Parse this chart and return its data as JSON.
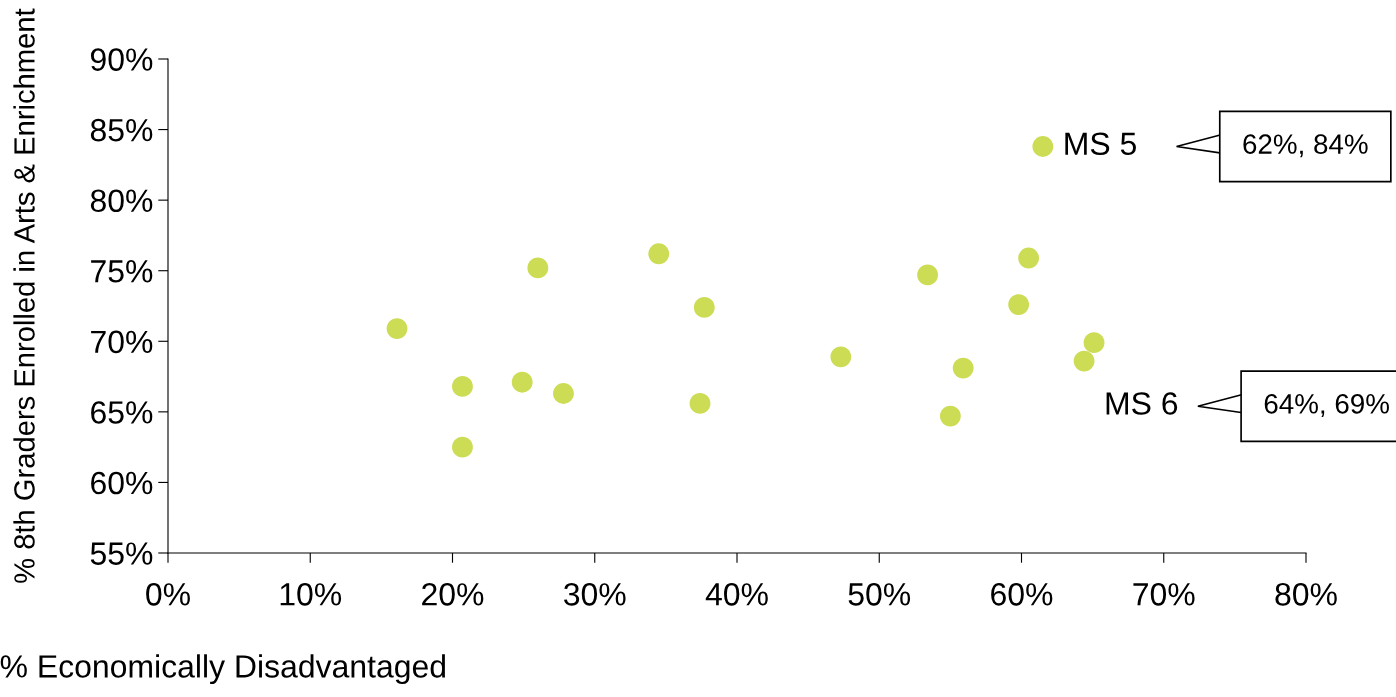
{
  "chart_data": {
    "type": "scatter",
    "xlabel": "% Economically Disadvantaged",
    "ylabel": "% 8th Graders Enrolled in Arts & Enrichment",
    "series": [
      {
        "color": "#cddc55",
        "x": [
          16.1,
          20.7,
          20.7,
          24.9,
          26.0,
          27.8,
          34.5,
          37.7,
          37.4,
          47.3,
          53.4,
          55.0,
          55.9,
          59.8,
          60.5,
          61.5,
          64.4,
          65.1
        ],
        "values": [
          70.9,
          66.8,
          62.5,
          67.1,
          75.2,
          66.3,
          76.2,
          72.4,
          65.6,
          68.9,
          74.7,
          64.7,
          68.1,
          72.6,
          75.9,
          83.8,
          68.6,
          69.9
        ]
      }
    ],
    "marker": "circle",
    "grid": false,
    "legend": false,
    "xlim": [
      0,
      80
    ],
    "ylim": [
      55,
      90
    ],
    "xticks": [
      {
        "value": 0,
        "label": "0%"
      },
      {
        "value": 10,
        "label": "10%"
      },
      {
        "value": 20,
        "label": "20%"
      },
      {
        "value": 30,
        "label": "30%"
      },
      {
        "value": 40,
        "label": "40%"
      },
      {
        "value": 50,
        "label": "50%"
      },
      {
        "value": 60,
        "label": "60%"
      },
      {
        "value": 70,
        "label": "70%"
      },
      {
        "value": 80,
        "label": "80%"
      }
    ],
    "yticks": [
      {
        "value": 55,
        "label": "55%"
      },
      {
        "value": 60,
        "label": "60%"
      },
      {
        "value": 65,
        "label": "65%"
      },
      {
        "value": 70,
        "label": "70%"
      },
      {
        "value": 75,
        "label": "75%"
      },
      {
        "value": 80,
        "label": "80%"
      },
      {
        "value": 85,
        "label": "85%"
      },
      {
        "value": 90,
        "label": "90%"
      }
    ],
    "annotations": [
      {
        "text": "MS 5",
        "x": 61.5,
        "y": 83.8
      },
      "62%, 84%",
      {
        "text": "MS 6",
        "x": 64.4,
        "y": 68.6
      },
      "64%, 69%"
    ]
  }
}
